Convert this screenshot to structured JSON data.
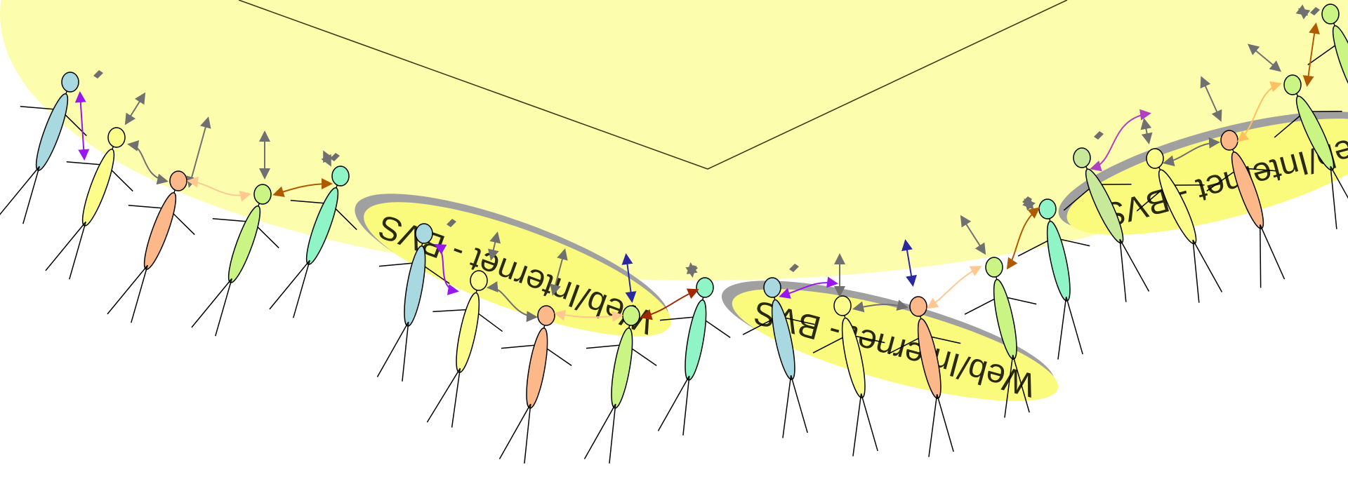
{
  "colors": {
    "background_ellipse": "#fdfdae",
    "label_ellipse": "#fafa7c",
    "label_shadow": "#a0a0a0",
    "line": "#000000",
    "vertex_line": "#3b3b10",
    "grey_arrow": "#707070",
    "orange_arrow": "#b05a00",
    "peach_arrow": "#ffc890",
    "purple_arrow": "#9a16f0",
    "magenta_arrow": "#b040c0",
    "navy_arrow": "#2828a0",
    "darkred_arrow": "#a02800",
    "light_orange_arrow": "#ffc060",
    "diamond": "#6e6e6e"
  },
  "figure_palette": {
    "blue": "#a8d8e0",
    "yellow": "#fcfc8a",
    "orange": "#fcb888",
    "lime": "#caf585",
    "mint": "#8ff5c6",
    "sage": "#c8e89a"
  },
  "labels": [
    {
      "text": "Web/Internet - BVS"
    },
    {
      "text": "Web/Internet - BVS"
    },
    {
      "text": "Web/Internet - BVS"
    }
  ]
}
